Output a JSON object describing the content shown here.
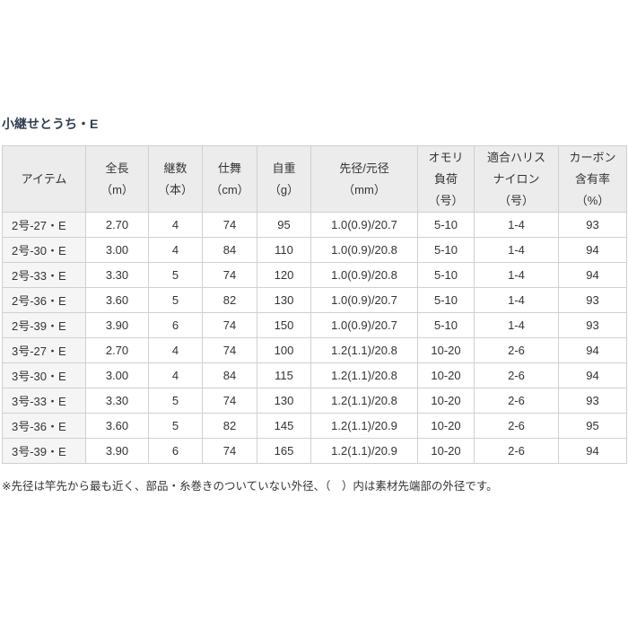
{
  "section": {
    "title": "小継せとうち・E",
    "title_color": "#2f3e52",
    "footnote": "※先径は竿先から最も近く、部品・糸巻きのついていない外径、（　）内は素材先端部の外径です。"
  },
  "table": {
    "headers": [
      {
        "lines": [
          "アイテム"
        ]
      },
      {
        "lines": [
          "全長",
          "（m）"
        ]
      },
      {
        "lines": [
          "継数",
          "（本）"
        ]
      },
      {
        "lines": [
          "仕舞",
          "（cm）"
        ]
      },
      {
        "lines": [
          "自重",
          "（g）"
        ]
      },
      {
        "lines": [
          "先径/元径",
          "（mm）"
        ]
      },
      {
        "lines": [
          "オモリ",
          "負荷",
          "（号）"
        ]
      },
      {
        "lines": [
          "適合ハリス",
          "ナイロン",
          "（号）"
        ]
      },
      {
        "lines": [
          "カーボン",
          "含有率",
          "（%）"
        ]
      }
    ],
    "rows": [
      {
        "item": "2号-27・E",
        "values": [
          "2.70",
          "4",
          "74",
          "95",
          "1.0(0.9)/20.7",
          "5-10",
          "1-4",
          "93"
        ]
      },
      {
        "item": "2号-30・E",
        "values": [
          "3.00",
          "4",
          "84",
          "110",
          "1.0(0.9)/20.8",
          "5-10",
          "1-4",
          "94"
        ]
      },
      {
        "item": "2号-33・E",
        "values": [
          "3.30",
          "5",
          "74",
          "120",
          "1.0(0.9)/20.8",
          "5-10",
          "1-4",
          "94"
        ]
      },
      {
        "item": "2号-36・E",
        "values": [
          "3.60",
          "5",
          "82",
          "130",
          "1.0(0.9)/20.7",
          "5-10",
          "1-4",
          "93"
        ]
      },
      {
        "item": "2号-39・E",
        "values": [
          "3.90",
          "6",
          "74",
          "150",
          "1.0(0.9)/20.7",
          "5-10",
          "1-4",
          "93"
        ]
      },
      {
        "item": "3号-27・E",
        "values": [
          "2.70",
          "4",
          "74",
          "100",
          "1.2(1.1)/20.8",
          "10-20",
          "2-6",
          "94"
        ]
      },
      {
        "item": "3号-30・E",
        "values": [
          "3.00",
          "4",
          "84",
          "115",
          "1.2(1.1)/20.8",
          "10-20",
          "2-6",
          "94"
        ]
      },
      {
        "item": "3号-33・E",
        "values": [
          "3.30",
          "5",
          "74",
          "130",
          "1.2(1.1)/20.8",
          "10-20",
          "2-6",
          "93"
        ]
      },
      {
        "item": "3号-36・E",
        "values": [
          "3.60",
          "5",
          "82",
          "145",
          "1.2(1.1)/20.9",
          "10-20",
          "2-6",
          "95"
        ]
      },
      {
        "item": "3号-39・E",
        "values": [
          "3.90",
          "6",
          "74",
          "165",
          "1.2(1.1)/20.9",
          "10-20",
          "2-6",
          "94"
        ]
      }
    ]
  }
}
